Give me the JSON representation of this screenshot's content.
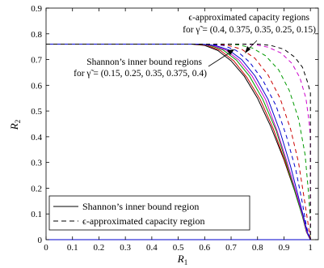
{
  "chart_data": {
    "type": "line",
    "xlabel": "R1",
    "ylabel": "R2",
    "xlim": [
      0,
      1.03
    ],
    "ylim": [
      0,
      0.9
    ],
    "xticks": [
      "0",
      "0.1",
      "0.2",
      "0.3",
      "0.4",
      "0.5",
      "0.6",
      "0.7",
      "0.8",
      "0.9",
      "1"
    ],
    "yticks": [
      "0",
      "0.1",
      "0.2",
      "0.3",
      "0.4",
      "0.5",
      "0.6",
      "0.7",
      "0.8",
      "0.9"
    ],
    "grid": false,
    "legend_position": "bottom-left",
    "legend": [
      {
        "label": "Shannon’s inner bound region",
        "style": "solid"
      },
      {
        "label": "ϵ-approximated capacity region",
        "style": "dashed"
      }
    ],
    "annotations": [
      {
        "line1": "ϵ-approximated capacity regions",
        "line2": "for γ̃ = (0.4, 0.375, 0.35, 0.25, 0.15)"
      },
      {
        "line1": "Shannon’s inner bound regions",
        "line2": "for γ̃ = (0.15, 0.25, 0.35, 0.375, 0.4)"
      }
    ],
    "series": [
      {
        "style": "solid",
        "color": "#000000",
        "points": [
          [
            0,
            0.76
          ],
          [
            0.55,
            0.76
          ],
          [
            0.6,
            0.755
          ],
          [
            0.65,
            0.735
          ],
          [
            0.7,
            0.695
          ],
          [
            0.75,
            0.635
          ],
          [
            0.8,
            0.55
          ],
          [
            0.85,
            0.44
          ],
          [
            0.9,
            0.31
          ],
          [
            0.94,
            0.19
          ],
          [
            0.97,
            0.09
          ],
          [
            0.985,
            0.03
          ],
          [
            1,
            0
          ],
          [
            0,
            0
          ]
        ]
      },
      {
        "style": "solid",
        "color": "#cc0000",
        "points": [
          [
            0,
            0.76
          ],
          [
            0.56,
            0.76
          ],
          [
            0.61,
            0.755
          ],
          [
            0.66,
            0.735
          ],
          [
            0.71,
            0.695
          ],
          [
            0.76,
            0.63
          ],
          [
            0.81,
            0.545
          ],
          [
            0.86,
            0.43
          ],
          [
            0.905,
            0.3
          ],
          [
            0.945,
            0.18
          ],
          [
            0.97,
            0.09
          ],
          [
            0.985,
            0.03
          ],
          [
            1,
            0
          ],
          [
            0,
            0
          ]
        ]
      },
      {
        "style": "solid",
        "color": "#009900",
        "points": [
          [
            0,
            0.76
          ],
          [
            0.57,
            0.76
          ],
          [
            0.62,
            0.755
          ],
          [
            0.67,
            0.737
          ],
          [
            0.72,
            0.698
          ],
          [
            0.77,
            0.635
          ],
          [
            0.82,
            0.545
          ],
          [
            0.87,
            0.425
          ],
          [
            0.91,
            0.295
          ],
          [
            0.945,
            0.175
          ],
          [
            0.97,
            0.09
          ],
          [
            0.985,
            0.03
          ],
          [
            1,
            0
          ],
          [
            0,
            0
          ]
        ]
      },
      {
        "style": "solid",
        "color": "#cc00cc",
        "points": [
          [
            0,
            0.76
          ],
          [
            0.58,
            0.76
          ],
          [
            0.63,
            0.755
          ],
          [
            0.68,
            0.737
          ],
          [
            0.73,
            0.698
          ],
          [
            0.78,
            0.635
          ],
          [
            0.83,
            0.545
          ],
          [
            0.875,
            0.42
          ],
          [
            0.915,
            0.29
          ],
          [
            0.95,
            0.17
          ],
          [
            0.972,
            0.09
          ],
          [
            0.986,
            0.03
          ],
          [
            1,
            0
          ],
          [
            0,
            0
          ]
        ]
      },
      {
        "style": "solid",
        "color": "#0000cc",
        "points": [
          [
            0,
            0.76
          ],
          [
            0.59,
            0.76
          ],
          [
            0.64,
            0.755
          ],
          [
            0.69,
            0.738
          ],
          [
            0.74,
            0.7
          ],
          [
            0.79,
            0.637
          ],
          [
            0.84,
            0.545
          ],
          [
            0.885,
            0.42
          ],
          [
            0.925,
            0.285
          ],
          [
            0.955,
            0.165
          ],
          [
            0.975,
            0.085
          ],
          [
            0.988,
            0.03
          ],
          [
            1,
            0
          ],
          [
            0,
            0
          ]
        ]
      },
      {
        "style": "dashed",
        "color": "#0000cc",
        "points": [
          [
            0,
            0.76
          ],
          [
            0.62,
            0.76
          ],
          [
            0.67,
            0.755
          ],
          [
            0.72,
            0.735
          ],
          [
            0.77,
            0.69
          ],
          [
            0.82,
            0.62
          ],
          [
            0.87,
            0.52
          ],
          [
            0.91,
            0.4
          ],
          [
            0.945,
            0.27
          ],
          [
            0.97,
            0.14
          ],
          [
            0.985,
            0.05
          ],
          [
            1,
            0
          ]
        ]
      },
      {
        "style": "dashed",
        "color": "#cc0000",
        "points": [
          [
            0,
            0.76
          ],
          [
            0.64,
            0.76
          ],
          [
            0.69,
            0.755
          ],
          [
            0.74,
            0.74
          ],
          [
            0.79,
            0.705
          ],
          [
            0.84,
            0.64
          ],
          [
            0.885,
            0.55
          ],
          [
            0.925,
            0.43
          ],
          [
            0.955,
            0.3
          ],
          [
            0.975,
            0.17
          ],
          [
            0.99,
            0.07
          ],
          [
            1,
            0
          ]
        ]
      },
      {
        "style": "dashed",
        "color": "#009900",
        "points": [
          [
            0,
            0.76
          ],
          [
            0.68,
            0.76
          ],
          [
            0.73,
            0.757
          ],
          [
            0.78,
            0.745
          ],
          [
            0.83,
            0.715
          ],
          [
            0.88,
            0.66
          ],
          [
            0.92,
            0.58
          ],
          [
            0.955,
            0.47
          ],
          [
            0.98,
            0.33
          ],
          [
            0.993,
            0.18
          ],
          [
            1,
            0.07
          ],
          [
            1,
            0
          ]
        ]
      },
      {
        "style": "dashed",
        "color": "#cc00cc",
        "points": [
          [
            0,
            0.76
          ],
          [
            0.74,
            0.76
          ],
          [
            0.79,
            0.758
          ],
          [
            0.84,
            0.748
          ],
          [
            0.89,
            0.725
          ],
          [
            0.93,
            0.685
          ],
          [
            0.96,
            0.63
          ],
          [
            0.983,
            0.55
          ],
          [
            0.995,
            0.46
          ],
          [
            1,
            0.4
          ],
          [
            1,
            0
          ]
        ]
      },
      {
        "style": "dashed",
        "color": "#000000",
        "points": [
          [
            0,
            0.76
          ],
          [
            0.8,
            0.76
          ],
          [
            0.85,
            0.755
          ],
          [
            0.9,
            0.74
          ],
          [
            0.94,
            0.71
          ],
          [
            0.97,
            0.67
          ],
          [
            0.99,
            0.61
          ],
          [
            1,
            0.57
          ],
          [
            1,
            0
          ]
        ]
      }
    ]
  }
}
